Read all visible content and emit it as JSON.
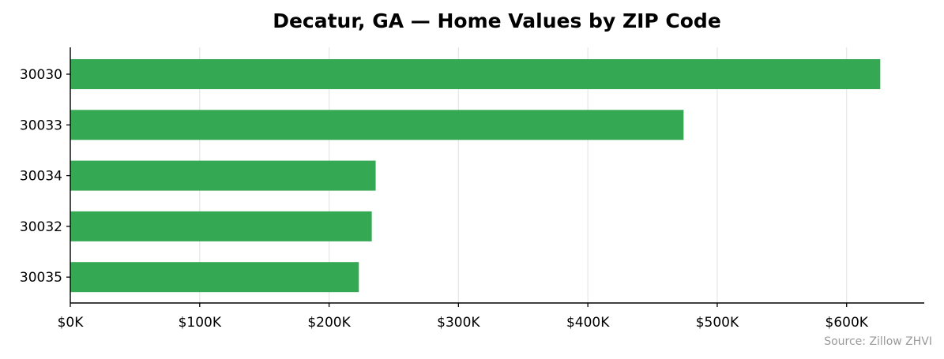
{
  "chart_data": {
    "type": "bar",
    "orientation": "horizontal",
    "title": "Decatur, GA — Home Values by ZIP Code",
    "xlabel": "",
    "ylabel": "",
    "categories": [
      "30030",
      "30033",
      "30034",
      "30032",
      "30035"
    ],
    "values": [
      626000,
      474000,
      236000,
      233000,
      223000
    ],
    "xlim": [
      0,
      660000
    ],
    "xticks": [
      0,
      100000,
      200000,
      300000,
      400000,
      500000,
      600000
    ],
    "xtick_labels": [
      "$0K",
      "$100K",
      "$200K",
      "$300K",
      "$400K",
      "$500K",
      "$600K"
    ],
    "grid": "vertical",
    "legend": "none",
    "source": "Source: Zillow ZHVI",
    "colors": {
      "bar": "#34a853",
      "grid": "#e6e6e6",
      "axis": "#000000",
      "source_text": "#999999"
    }
  }
}
